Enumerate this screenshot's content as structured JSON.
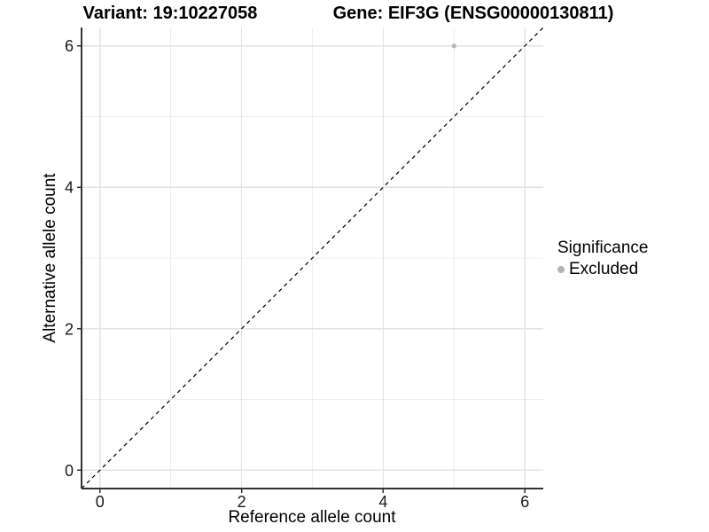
{
  "chart_data": {
    "type": "scatter",
    "title_left": "Variant: 19:10227058",
    "title_right": "Gene: EIF3G (ENSG00000130811)",
    "xlabel": "Reference allele count",
    "ylabel": "Alternative allele count",
    "xlim": [
      -0.26,
      6.26
    ],
    "ylim": [
      -0.26,
      6.26
    ],
    "x_major_ticks": [
      0,
      2,
      4,
      6
    ],
    "x_minor_ticks": [
      1,
      3,
      5
    ],
    "y_major_ticks": [
      0,
      2,
      4,
      6
    ],
    "y_minor_ticks": [
      1,
      3,
      5
    ],
    "grid": "major-and-minor",
    "points": [
      {
        "x": 5,
        "y": 6,
        "series": "Excluded"
      }
    ],
    "reference_line": {
      "slope": 1,
      "intercept": 0,
      "style": "dashed",
      "color": "#000000"
    },
    "legend": {
      "title": "Significance",
      "position": "right",
      "items": [
        {
          "label": "Excluded",
          "color": "#b4b4b4"
        }
      ]
    },
    "colors": {
      "point": "#b4b4b4",
      "grid_major": "#e3e3e3",
      "grid_minor": "#ededed",
      "axis_line": "#333333",
      "tick_text": "#1a1a1a",
      "background": "#ffffff"
    }
  }
}
